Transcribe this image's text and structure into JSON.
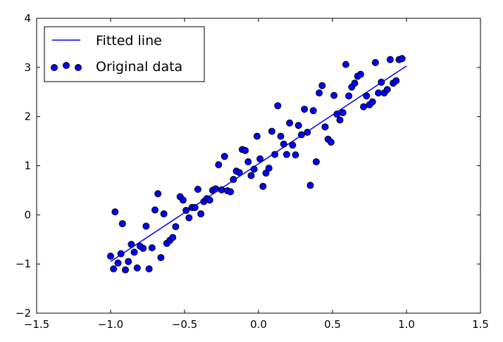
{
  "chart_data": {
    "type": "scatter",
    "title": "",
    "xlabel": "",
    "ylabel": "",
    "xlim": [
      -1.5,
      1.5
    ],
    "ylim": [
      -2,
      4
    ],
    "grid": false,
    "legend_position": "top-left",
    "xticks": [
      -1.5,
      -1.0,
      -0.5,
      0.0,
      0.5,
      1.0,
      1.5
    ],
    "yticks": [
      -2,
      -1,
      0,
      1,
      2,
      3,
      4
    ],
    "xtick_labels": [
      "−1.5",
      "−1.0",
      "−0.5",
      "0.0",
      "0.5",
      "1.0",
      "1.5"
    ],
    "ytick_labels": [
      "−2",
      "−1",
      "0",
      "1",
      "2",
      "3",
      "4"
    ],
    "series": [
      {
        "name": "Fitted line",
        "kind": "line",
        "color": "#0000ff",
        "x": [
          -1.0,
          1.0
        ],
        "y": [
          -0.95,
          3.03
        ]
      },
      {
        "name": "Original data",
        "kind": "scatter",
        "color": "#0000ff",
        "points": [
          [
            -1.0,
            -0.84
          ],
          [
            -0.98,
            -1.1
          ],
          [
            -0.97,
            0.06
          ],
          [
            -0.95,
            -0.98
          ],
          [
            -0.93,
            -0.79
          ],
          [
            -0.92,
            -0.18
          ],
          [
            -0.9,
            -1.12
          ],
          [
            -0.88,
            -0.95
          ],
          [
            -0.86,
            -0.6
          ],
          [
            -0.84,
            -0.76
          ],
          [
            -0.82,
            -1.08
          ],
          [
            -0.8,
            -0.64
          ],
          [
            -0.78,
            -0.68
          ],
          [
            -0.76,
            -0.23
          ],
          [
            -0.74,
            -1.1
          ],
          [
            -0.72,
            -0.67
          ],
          [
            -0.7,
            0.1
          ],
          [
            -0.68,
            0.43
          ],
          [
            -0.66,
            -0.87
          ],
          [
            -0.64,
            0.02
          ],
          [
            -0.62,
            -0.58
          ],
          [
            -0.6,
            -0.52
          ],
          [
            -0.58,
            -0.46
          ],
          [
            -0.56,
            -0.24
          ],
          [
            -0.53,
            0.37
          ],
          [
            -0.51,
            0.3
          ],
          [
            -0.49,
            0.09
          ],
          [
            -0.47,
            -0.06
          ],
          [
            -0.45,
            0.15
          ],
          [
            -0.43,
            0.15
          ],
          [
            -0.41,
            0.52
          ],
          [
            -0.39,
            0.02
          ],
          [
            -0.37,
            0.27
          ],
          [
            -0.35,
            0.33
          ],
          [
            -0.33,
            0.3
          ],
          [
            -0.31,
            0.5
          ],
          [
            -0.29,
            0.53
          ],
          [
            -0.27,
            1.02
          ],
          [
            -0.25,
            0.51
          ],
          [
            -0.23,
            1.19
          ],
          [
            -0.21,
            0.49
          ],
          [
            -0.19,
            0.47
          ],
          [
            -0.17,
            0.72
          ],
          [
            -0.15,
            0.89
          ],
          [
            -0.13,
            0.86
          ],
          [
            -0.11,
            1.33
          ],
          [
            -0.09,
            1.31
          ],
          [
            -0.07,
            1.08
          ],
          [
            -0.05,
            0.8
          ],
          [
            -0.03,
            0.93
          ],
          [
            -0.01,
            1.6
          ],
          [
            0.01,
            1.14
          ],
          [
            0.03,
            0.58
          ],
          [
            0.05,
            0.85
          ],
          [
            0.07,
            0.95
          ],
          [
            0.09,
            1.7
          ],
          [
            0.11,
            1.23
          ],
          [
            0.13,
            2.22
          ],
          [
            0.15,
            1.6
          ],
          [
            0.17,
            1.44
          ],
          [
            0.19,
            1.23
          ],
          [
            0.21,
            1.87
          ],
          [
            0.23,
            1.42
          ],
          [
            0.25,
            1.22
          ],
          [
            0.27,
            1.82
          ],
          [
            0.29,
            1.63
          ],
          [
            0.31,
            2.15
          ],
          [
            0.33,
            1.68
          ],
          [
            0.35,
            0.6
          ],
          [
            0.37,
            2.12
          ],
          [
            0.39,
            1.08
          ],
          [
            0.41,
            2.48
          ],
          [
            0.43,
            2.63
          ],
          [
            0.45,
            1.79
          ],
          [
            0.47,
            1.54
          ],
          [
            0.49,
            1.48
          ],
          [
            0.51,
            2.43
          ],
          [
            0.53,
            2.05
          ],
          [
            0.55,
            1.93
          ],
          [
            0.57,
            2.08
          ],
          [
            0.59,
            3.06
          ],
          [
            0.61,
            2.42
          ],
          [
            0.63,
            2.6
          ],
          [
            0.65,
            2.68
          ],
          [
            0.67,
            2.82
          ],
          [
            0.69,
            2.86
          ],
          [
            0.71,
            2.2
          ],
          [
            0.73,
            2.42
          ],
          [
            0.75,
            2.24
          ],
          [
            0.77,
            2.3
          ],
          [
            0.79,
            3.1
          ],
          [
            0.81,
            2.48
          ],
          [
            0.83,
            2.7
          ],
          [
            0.85,
            2.48
          ],
          [
            0.87,
            2.55
          ],
          [
            0.89,
            3.16
          ],
          [
            0.91,
            2.68
          ],
          [
            0.93,
            2.73
          ],
          [
            0.95,
            3.16
          ],
          [
            0.97,
            3.18
          ]
        ]
      }
    ]
  }
}
